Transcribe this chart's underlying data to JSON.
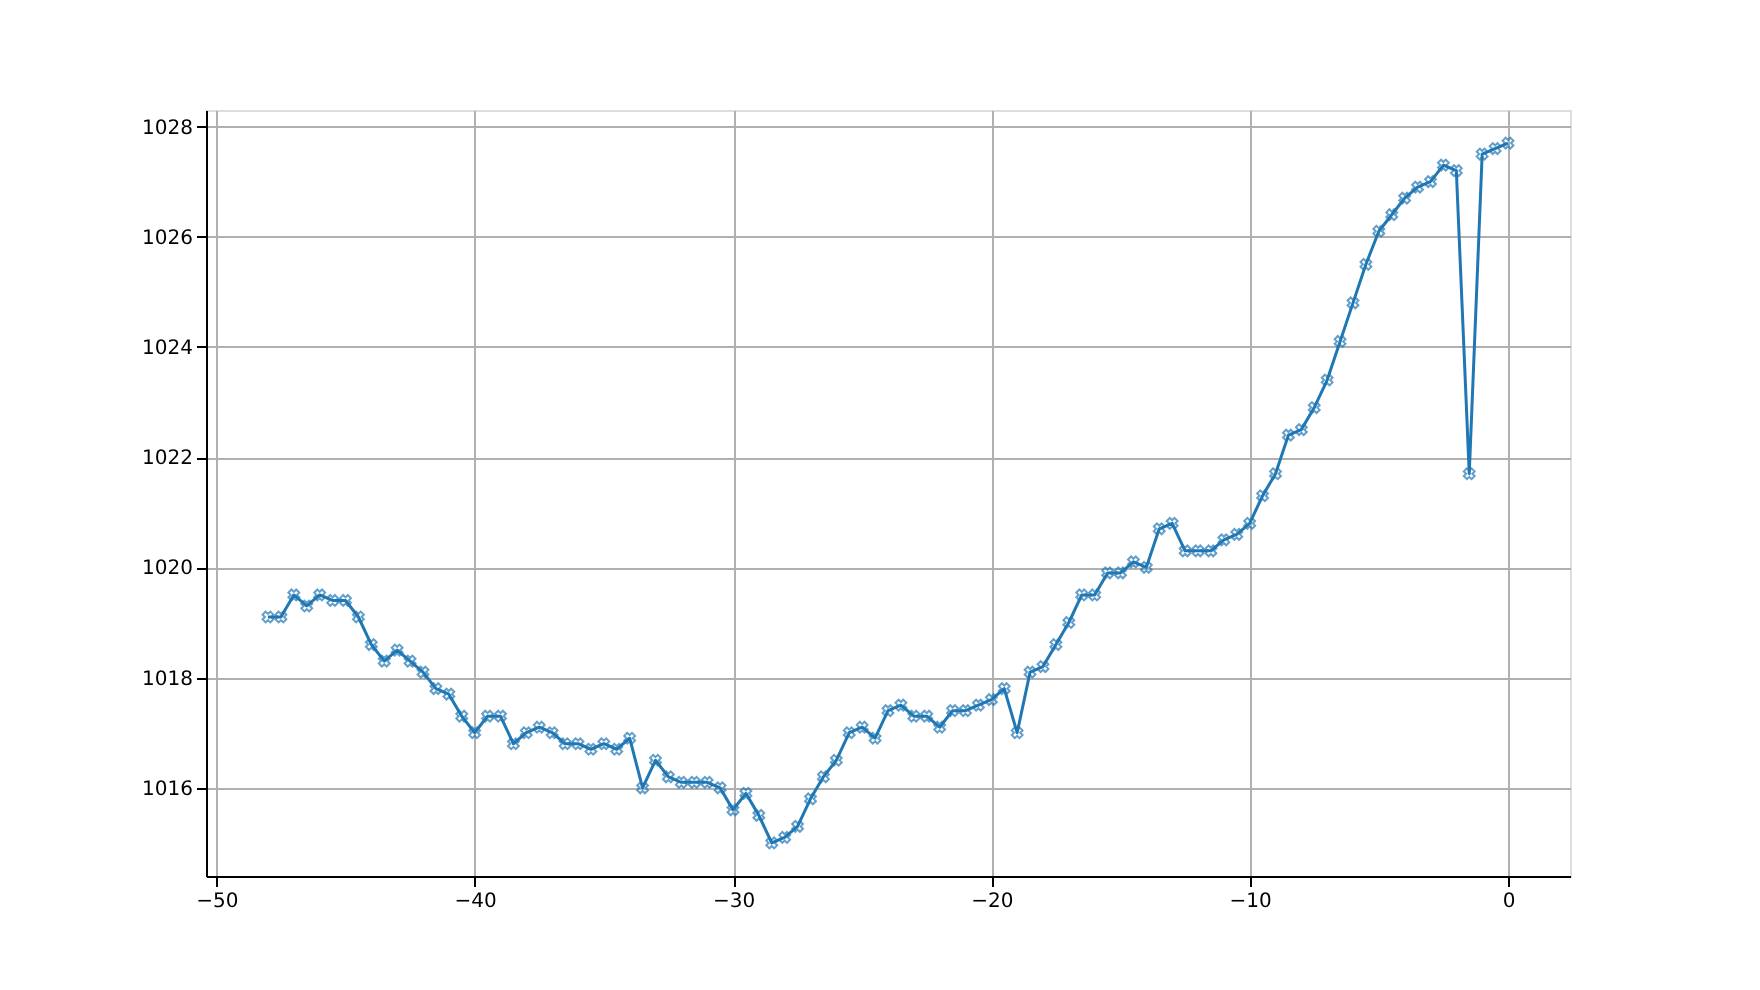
{
  "chart_data": {
    "type": "line",
    "x": [
      -48,
      -47.5,
      -47,
      -46.5,
      -46,
      -45.5,
      -45,
      -44.5,
      -44,
      -43.5,
      -43,
      -42.5,
      -42,
      -41.5,
      -41,
      -40.5,
      -40,
      -39.5,
      -39,
      -38.5,
      -38,
      -37.5,
      -37,
      -36.5,
      -36,
      -35.5,
      -35,
      -34.5,
      -34,
      -33.5,
      -33,
      -32.5,
      -32,
      -31.5,
      -31,
      -30.5,
      -30,
      -29.5,
      -29,
      -28.5,
      -28,
      -27.5,
      -27,
      -26.5,
      -26,
      -25.5,
      -25,
      -24.5,
      -24,
      -23.5,
      -23,
      -22.5,
      -22,
      -21.5,
      -21,
      -20.5,
      -20,
      -19.5,
      -19,
      -18.5,
      -18,
      -17.5,
      -17,
      -16.5,
      -16,
      -15.5,
      -15,
      -14.5,
      -14,
      -13.5,
      -13,
      -12.5,
      -12,
      -11.5,
      -11,
      -10.5,
      -10,
      -9.5,
      -9,
      -8.5,
      -8,
      -7.5,
      -7,
      -6.5,
      -6,
      -5.5,
      -5,
      -4.5,
      -4,
      -3.5,
      -3,
      -2.5,
      -2,
      -1.5,
      -1,
      -0.5,
      0
    ],
    "series": [
      {
        "color": "#1f77b4",
        "values": [
          1019.1,
          1019.1,
          1019.5,
          1019.3,
          1019.5,
          1019.4,
          1019.4,
          1019.1,
          1018.6,
          1018.3,
          1018.5,
          1018.3,
          1018.1,
          1017.8,
          1017.7,
          1017.3,
          1017.0,
          1017.3,
          1017.3,
          1016.8,
          1017.0,
          1017.1,
          1017.0,
          1016.8,
          1016.8,
          1016.7,
          1016.8,
          1016.7,
          1016.9,
          1016.0,
          1016.5,
          1016.2,
          1016.1,
          1016.1,
          1016.1,
          1016.0,
          1015.6,
          1015.9,
          1015.5,
          1015.0,
          1015.1,
          1015.3,
          1015.8,
          1016.2,
          1016.5,
          1017.0,
          1017.1,
          1016.9,
          1017.4,
          1017.5,
          1017.3,
          1017.3,
          1017.1,
          1017.4,
          1017.4,
          1017.5,
          1017.6,
          1017.8,
          1017.0,
          1018.1,
          1018.2,
          1018.6,
          1019.0,
          1019.5,
          1019.5,
          1019.9,
          1019.9,
          1020.1,
          1020.0,
          1020.7,
          1020.8,
          1020.3,
          1020.3,
          1020.3,
          1020.5,
          1020.6,
          1020.8,
          1021.3,
          1021.7,
          1022.4,
          1022.5,
          1022.9,
          1023.4,
          1024.1,
          1024.8,
          1025.5,
          1026.1,
          1026.4,
          1026.7,
          1026.9,
          1027.0,
          1027.3,
          1027.2,
          1021.7,
          1027.5,
          1027.6,
          1027.7
        ]
      }
    ],
    "xlim": [
      -50.4,
      2.4
    ],
    "xticks": [
      -50,
      -40,
      -30,
      -20,
      -10,
      0
    ],
    "ylim": [
      1014.4,
      1028.3
    ],
    "yticks": [
      1016,
      1018,
      1020,
      1022,
      1024,
      1026,
      1028
    ],
    "grid": true,
    "marker": "cross",
    "line_style": "solid"
  }
}
